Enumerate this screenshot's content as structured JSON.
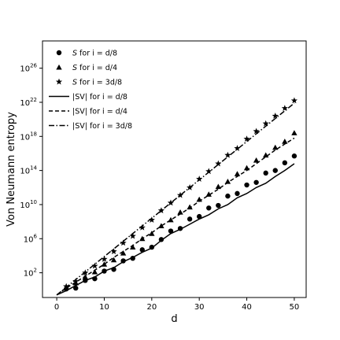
{
  "chart_data": {
    "type": "line",
    "xlabel": "d",
    "ylabel": "Von Neumann entropy",
    "xlim": [
      -3,
      52.5
    ],
    "ylim_log10": [
      -0.9,
      29.2
    ],
    "y_scale": "log",
    "grid": false,
    "legend_position": "top-left",
    "x_ticks": [
      0,
      10,
      20,
      30,
      40,
      50
    ],
    "x_tick_labels": [
      "0",
      "10",
      "20",
      "30",
      "40",
      "50"
    ],
    "y_ticks_log10": [
      2,
      6,
      10,
      14,
      18,
      22,
      26
    ],
    "y_tick_bases": [
      "10",
      "10",
      "10",
      "10",
      "10",
      "10",
      "10"
    ],
    "y_tick_exponents": [
      "2",
      "6",
      "10",
      "14",
      "18",
      "22",
      "26"
    ],
    "legend": [
      {
        "kind": "marker",
        "shape": "circle",
        "prefix": "S",
        "text": " for i = d/8"
      },
      {
        "kind": "marker",
        "shape": "triangle",
        "prefix": "S",
        "text": " for i = d/4"
      },
      {
        "kind": "marker",
        "shape": "star",
        "prefix": "S",
        "text": " for i = 3d/8"
      },
      {
        "kind": "line",
        "dash": "solid",
        "text": "|SV| for i = d/8"
      },
      {
        "kind": "line",
        "dash": "dashed",
        "text": "|SV| for i = d/4"
      },
      {
        "kind": "line",
        "dash": "dashdot",
        "text": "|SV| for i = 3d/8"
      }
    ],
    "marker_series": [
      {
        "name": "S for i = d/8",
        "shape": "circle",
        "x": [
          2,
          4,
          6,
          8,
          10,
          12,
          14,
          16,
          18,
          20,
          22,
          24,
          26,
          28,
          30,
          32,
          34,
          36,
          38,
          40,
          42,
          44,
          46,
          48,
          50
        ],
        "log10_y": [
          0.1,
          0.2,
          1.1,
          1.3,
          2.2,
          2.4,
          3.4,
          3.7,
          4.7,
          5.0,
          5.9,
          6.9,
          7.2,
          8.3,
          8.6,
          9.6,
          9.9,
          11.0,
          11.3,
          12.3,
          12.6,
          13.7,
          14.0,
          14.9,
          15.7
        ]
      },
      {
        "name": "S for i = d/4",
        "shape": "triangle",
        "x": [
          2,
          4,
          6,
          8,
          10,
          12,
          14,
          16,
          18,
          20,
          22,
          24,
          26,
          28,
          30,
          32,
          34,
          36,
          38,
          40,
          42,
          44,
          46,
          48,
          50
        ],
        "log10_y": [
          0.3,
          0.8,
          1.5,
          2.1,
          3.0,
          3.5,
          4.3,
          5.0,
          6.0,
          6.6,
          7.5,
          8.2,
          9.1,
          9.7,
          10.6,
          11.2,
          12.1,
          12.7,
          13.6,
          14.3,
          15.2,
          15.8,
          16.7,
          17.4,
          18.4
        ]
      },
      {
        "name": "S for i = 3d/8",
        "shape": "star",
        "x": [
          2,
          4,
          6,
          8,
          10,
          12,
          14,
          16,
          18,
          20,
          22,
          24,
          26,
          28,
          30,
          32,
          34,
          36,
          38,
          40,
          42,
          44,
          46,
          48,
          50
        ],
        "log10_y": [
          0.4,
          1.0,
          2.0,
          2.8,
          3.6,
          4.5,
          5.5,
          6.3,
          7.3,
          8.2,
          9.3,
          10.2,
          11.1,
          12.0,
          13.0,
          13.9,
          14.8,
          15.8,
          16.6,
          17.7,
          18.6,
          19.5,
          20.4,
          21.3,
          22.2
        ]
      }
    ],
    "line_series": [
      {
        "name": "|SV| for i = d/8",
        "dash": "solid",
        "x": [
          0,
          2,
          4,
          6,
          8,
          10,
          12,
          14,
          16,
          18,
          20,
          22,
          24,
          26,
          28,
          30,
          32,
          34,
          36,
          38,
          40,
          42,
          44,
          46,
          48,
          50
        ],
        "log10_y": [
          -0.6,
          -0.1,
          0.5,
          1.1,
          1.5,
          2.2,
          2.6,
          3.3,
          3.8,
          4.4,
          4.9,
          5.8,
          6.6,
          7.1,
          7.7,
          8.3,
          8.8,
          9.5,
          10.0,
          10.8,
          11.3,
          12.0,
          12.5,
          13.3,
          14.0,
          14.8
        ]
      },
      {
        "name": "|SV| for i = d/4",
        "dash": "dashed",
        "x": [
          0,
          2,
          4,
          6,
          8,
          10,
          12,
          14,
          16,
          18,
          20,
          22,
          24,
          26,
          28,
          30,
          32,
          34,
          36,
          38,
          40,
          42,
          44,
          46,
          48,
          50
        ],
        "log10_y": [
          -0.6,
          0.2,
          0.9,
          1.6,
          2.3,
          3.0,
          3.8,
          4.5,
          5.2,
          6.0,
          6.7,
          7.5,
          8.2,
          8.9,
          9.6,
          10.4,
          11.1,
          11.8,
          12.6,
          13.3,
          14.0,
          14.8,
          15.6,
          16.4,
          17.1,
          17.8
        ]
      },
      {
        "name": "|SV| for i = 3d/8",
        "dash": "dashdot",
        "x": [
          0,
          2,
          4,
          6,
          8,
          10,
          12,
          14,
          16,
          18,
          20,
          22,
          24,
          26,
          28,
          30,
          32,
          34,
          36,
          38,
          40,
          42,
          44,
          46,
          48,
          50
        ],
        "log10_y": [
          -0.6,
          0.3,
          1.2,
          2.1,
          3.0,
          3.9,
          4.8,
          5.7,
          6.6,
          7.5,
          8.4,
          9.3,
          10.2,
          11.1,
          12.0,
          12.9,
          13.8,
          14.7,
          15.6,
          16.5,
          17.4,
          18.3,
          19.2,
          20.1,
          21.0,
          21.9
        ]
      }
    ]
  }
}
